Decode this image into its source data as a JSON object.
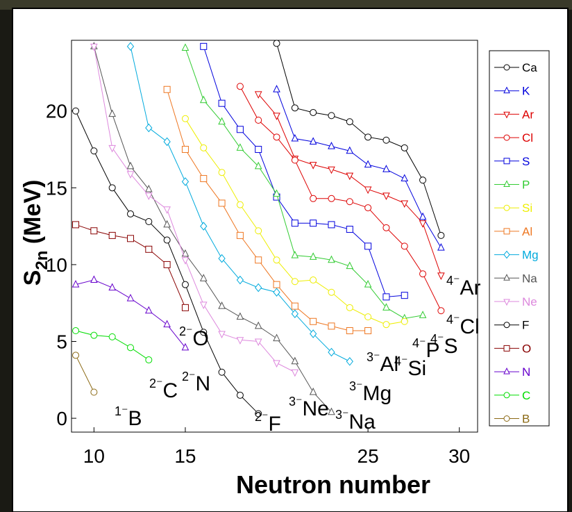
{
  "chart_data": {
    "type": "line",
    "x_label": "Neutron number",
    "y_label": {
      "symbol": "S",
      "subscript": "2n",
      "unit": " (MeV)"
    },
    "xlim": [
      8.77,
      31.0
    ],
    "ylim": [
      -0.9,
      24.6
    ],
    "xticks": [
      10,
      15,
      25,
      30
    ],
    "yticks": [
      0,
      5,
      10,
      15,
      20
    ],
    "series": [
      {
        "name": "Ca",
        "color": "#000000",
        "marker": "o",
        "x": [
          20,
          21,
          22,
          23,
          24,
          25,
          26,
          27,
          28,
          29
        ],
        "values": [
          24.4,
          20.2,
          19.9,
          19.7,
          19.3,
          18.3,
          18.1,
          17.6,
          15.5,
          11.9
        ]
      },
      {
        "name": "K",
        "color": "#0000dd",
        "marker": "^",
        "x": [
          20,
          21,
          22,
          23,
          24,
          25,
          26,
          27,
          28,
          29
        ],
        "values": [
          21.4,
          18.2,
          18.0,
          17.7,
          17.4,
          16.5,
          16.2,
          15.6,
          13.1,
          11.1
        ]
      },
      {
        "name": "Ar",
        "color": "#dd0000",
        "marker": "v",
        "x": [
          19,
          20,
          21,
          22,
          23,
          24,
          25,
          26,
          27,
          28,
          29
        ],
        "values": [
          21.1,
          19.7,
          16.9,
          16.5,
          16.2,
          15.8,
          14.9,
          14.5,
          14.0,
          12.7,
          9.3
        ]
      },
      {
        "name": "Cl",
        "color": "#dd0000",
        "marker": "o",
        "x": [
          18,
          19,
          20,
          21,
          22,
          23,
          24,
          25,
          26,
          27,
          28,
          29
        ],
        "values": [
          21.6,
          19.4,
          18.3,
          16.8,
          14.3,
          14.3,
          14.1,
          13.7,
          12.4,
          11.2,
          9.4,
          7.0
        ]
      },
      {
        "name": "S",
        "color": "#0000dd",
        "marker": "s",
        "x": [
          16,
          17,
          18,
          19,
          20,
          21,
          22,
          23,
          24,
          25,
          26,
          27
        ],
        "values": [
          24.2,
          20.5,
          18.8,
          17.5,
          14.4,
          12.7,
          12.7,
          12.6,
          12.3,
          11.2,
          7.9,
          8.0
        ]
      },
      {
        "name": "P",
        "color": "#33cc33",
        "marker": "^",
        "x": [
          15,
          16,
          17,
          18,
          19,
          20,
          21,
          22,
          23,
          24,
          25,
          26,
          27,
          28
        ],
        "values": [
          24.1,
          20.7,
          19.3,
          17.6,
          16.4,
          14.6,
          10.6,
          10.5,
          10.3,
          9.9,
          8.7,
          7.2,
          6.5,
          6.7
        ]
      },
      {
        "name": "Si",
        "color": "#eeee00",
        "marker": "o",
        "x": [
          15,
          16,
          17,
          18,
          19,
          20,
          21,
          22,
          23,
          24,
          25,
          26,
          27
        ],
        "values": [
          19.5,
          17.6,
          16.0,
          13.9,
          12.2,
          10.3,
          8.9,
          9.0,
          8.2,
          7.2,
          6.6,
          6.1,
          6.3
        ]
      },
      {
        "name": "Al",
        "color": "#ee7722",
        "marker": "s",
        "x": [
          14,
          15,
          16,
          17,
          18,
          19,
          20,
          21,
          22,
          23,
          24,
          25
        ],
        "values": [
          21.4,
          17.5,
          15.6,
          14.0,
          11.9,
          10.3,
          8.7,
          7.3,
          6.3,
          6.0,
          5.7,
          5.7
        ]
      },
      {
        "name": "Mg",
        "color": "#00aadd",
        "marker": "d",
        "x": [
          12,
          13,
          14,
          15,
          16,
          17,
          18,
          19,
          20,
          21,
          22,
          23,
          24
        ],
        "values": [
          24.2,
          18.9,
          18.0,
          15.4,
          12.5,
          10.4,
          9.0,
          8.5,
          8.2,
          6.8,
          5.5,
          4.3,
          3.7
        ]
      },
      {
        "name": "Na",
        "color": "#555555",
        "marker": "^",
        "x": [
          10,
          11,
          12,
          13,
          14,
          15,
          16,
          17,
          18,
          19,
          20,
          21,
          22,
          23
        ],
        "values": [
          24.2,
          19.8,
          16.4,
          14.9,
          12.6,
          10.7,
          9.1,
          7.3,
          6.6,
          6.0,
          5.2,
          3.7,
          1.7,
          0.4
        ]
      },
      {
        "name": "Ne",
        "color": "#dd88dd",
        "marker": "v",
        "x": [
          10,
          11,
          12,
          13,
          14,
          15,
          16,
          17,
          18,
          19,
          20,
          21
        ],
        "values": [
          24.2,
          17.6,
          15.9,
          14.5,
          13.6,
          10.3,
          7.4,
          5.5,
          5.1,
          5.0,
          3.6,
          3.0
        ]
      },
      {
        "name": "F",
        "color": "#000000",
        "marker": "o",
        "x": [
          9,
          10,
          11,
          12,
          13,
          14,
          15,
          16,
          17,
          18,
          19
        ],
        "values": [
          20.0,
          17.4,
          15.0,
          13.3,
          12.8,
          11.6,
          8.7,
          5.6,
          3.0,
          1.5,
          0.3
        ]
      },
      {
        "name": "O",
        "color": "#880000",
        "marker": "s",
        "x": [
          9,
          10,
          11,
          12,
          13,
          14,
          15
        ],
        "values": [
          12.6,
          12.2,
          11.9,
          11.7,
          11.0,
          10.0,
          7.2
        ]
      },
      {
        "name": "N",
        "color": "#6600cc",
        "marker": "^",
        "x": [
          9,
          10,
          11,
          12,
          13,
          14,
          15
        ],
        "values": [
          8.7,
          9.0,
          8.5,
          7.8,
          7.0,
          6.1,
          4.6
        ]
      },
      {
        "name": "C",
        "color": "#00dd00",
        "marker": "o",
        "x": [
          9,
          10,
          11,
          12,
          13
        ],
        "values": [
          5.7,
          5.4,
          5.3,
          4.6,
          3.8
        ]
      },
      {
        "name": "B",
        "color": "#8b6914",
        "marker": "o",
        "x": [
          9,
          10
        ],
        "values": [
          4.1,
          1.7
        ]
      }
    ],
    "annotations": [
      {
        "sup": "1⁻",
        "text": "B"
      },
      {
        "sup": "2⁻",
        "text": "C"
      },
      {
        "sup": "2⁻",
        "text": "N"
      },
      {
        "sup": "2⁻",
        "text": "O"
      },
      {
        "sup": "2⁻",
        "text": "F"
      },
      {
        "sup": "3⁻",
        "text": "Ne"
      },
      {
        "sup": "3⁻",
        "text": "Na"
      },
      {
        "sup": "3⁻",
        "text": "Mg"
      },
      {
        "sup": "3⁻",
        "text": "Al"
      },
      {
        "sup": "4⁻",
        "text": "Si"
      },
      {
        "sup": "4⁻",
        "text": "P"
      },
      {
        "sup": "4⁻",
        "text": "S"
      },
      {
        "sup": "4⁻",
        "text": "Cl"
      },
      {
        "sup": "4⁻",
        "text": "Ar"
      }
    ]
  }
}
